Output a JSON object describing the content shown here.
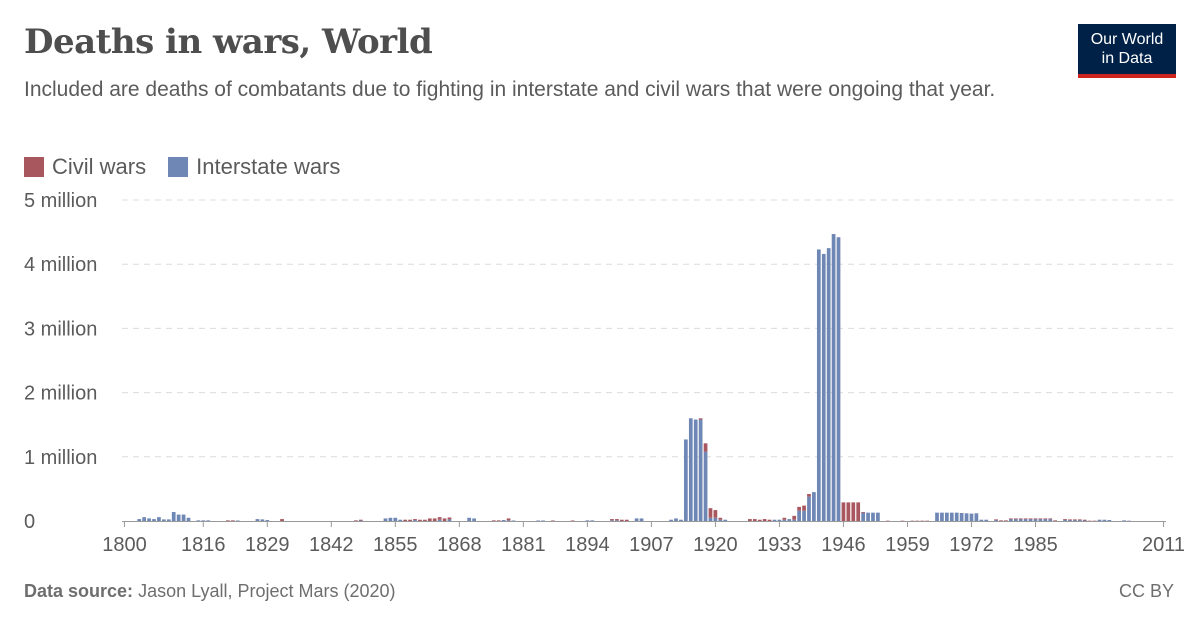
{
  "header": {
    "title": "Deaths in wars, World",
    "subtitle": "Included are deaths of combatants due to fighting in interstate and civil wars that were ongoing that year.",
    "logo_line1": "Our World",
    "logo_line2": "in Data"
  },
  "footer": {
    "source_label": "Data source:",
    "source_text": "Jason Lyall, Project Mars (2020)",
    "license": "CC BY"
  },
  "colors": {
    "civil": "#a8575e",
    "interstate": "#6f87b5"
  },
  "chart_data": {
    "type": "bar",
    "stacked": true,
    "title": "Deaths in wars, World",
    "legend": [
      "Civil wars",
      "Interstate wars"
    ],
    "legend_position": "top-left",
    "grid": true,
    "y_ticks": [
      {
        "value": 0,
        "label": "0"
      },
      {
        "value": 1000000,
        "label": "1 million"
      },
      {
        "value": 2000000,
        "label": "2 million"
      },
      {
        "value": 3000000,
        "label": "3 million"
      },
      {
        "value": 4000000,
        "label": "4 million"
      },
      {
        "value": 5000000,
        "label": "5 million"
      }
    ],
    "ylim": [
      0,
      5000000
    ],
    "xlim": [
      1800,
      2011
    ],
    "x_ticks": [
      1800,
      1816,
      1829,
      1842,
      1855,
      1868,
      1881,
      1894,
      1907,
      1920,
      1933,
      1946,
      1959,
      1972,
      1985,
      2011
    ],
    "series": [
      {
        "name": "Interstate wars",
        "points": [
          [
            1803,
            30000
          ],
          [
            1804,
            60000
          ],
          [
            1805,
            40000
          ],
          [
            1806,
            30000
          ],
          [
            1807,
            60000
          ],
          [
            1808,
            25000
          ],
          [
            1809,
            25000
          ],
          [
            1810,
            140000
          ],
          [
            1811,
            100000
          ],
          [
            1812,
            100000
          ],
          [
            1813,
            50000
          ],
          [
            1815,
            10000
          ],
          [
            1816,
            10000
          ],
          [
            1817,
            10000
          ],
          [
            1823,
            8000
          ],
          [
            1827,
            30000
          ],
          [
            1828,
            25000
          ],
          [
            1829,
            15000
          ],
          [
            1848,
            10000
          ],
          [
            1853,
            40000
          ],
          [
            1854,
            50000
          ],
          [
            1855,
            50000
          ],
          [
            1856,
            20000
          ],
          [
            1859,
            15000
          ],
          [
            1864,
            20000
          ],
          [
            1866,
            25000
          ],
          [
            1870,
            50000
          ],
          [
            1871,
            40000
          ],
          [
            1877,
            15000
          ],
          [
            1878,
            10000
          ],
          [
            1879,
            8000
          ],
          [
            1884,
            8000
          ],
          [
            1885,
            8000
          ],
          [
            1894,
            10000
          ],
          [
            1895,
            10000
          ],
          [
            1899,
            10000
          ],
          [
            1900,
            10000
          ],
          [
            1904,
            40000
          ],
          [
            1905,
            40000
          ],
          [
            1911,
            20000
          ],
          [
            1912,
            40000
          ],
          [
            1913,
            20000
          ],
          [
            1914,
            1270000
          ],
          [
            1915,
            1600000
          ],
          [
            1916,
            1580000
          ],
          [
            1917,
            1580000
          ],
          [
            1918,
            1080000
          ],
          [
            1919,
            50000
          ],
          [
            1920,
            50000
          ],
          [
            1921,
            20000
          ],
          [
            1922,
            20000
          ],
          [
            1932,
            20000
          ],
          [
            1933,
            20000
          ],
          [
            1934,
            20000
          ],
          [
            1935,
            30000
          ],
          [
            1936,
            20000
          ],
          [
            1937,
            160000
          ],
          [
            1938,
            160000
          ],
          [
            1939,
            380000
          ],
          [
            1940,
            450000
          ],
          [
            1941,
            4230000
          ],
          [
            1942,
            4160000
          ],
          [
            1943,
            4250000
          ],
          [
            1944,
            4470000
          ],
          [
            1945,
            4420000
          ],
          [
            1950,
            130000
          ],
          [
            1951,
            130000
          ],
          [
            1952,
            130000
          ],
          [
            1953,
            130000
          ],
          [
            1965,
            130000
          ],
          [
            1966,
            130000
          ],
          [
            1967,
            130000
          ],
          [
            1968,
            130000
          ],
          [
            1969,
            130000
          ],
          [
            1970,
            125000
          ],
          [
            1971,
            120000
          ],
          [
            1972,
            115000
          ],
          [
            1973,
            120000
          ],
          [
            1974,
            20000
          ],
          [
            1975,
            20000
          ],
          [
            1977,
            15000
          ],
          [
            1980,
            30000
          ],
          [
            1981,
            30000
          ],
          [
            1982,
            30000
          ],
          [
            1983,
            30000
          ],
          [
            1984,
            30000
          ],
          [
            1985,
            30000
          ],
          [
            1986,
            30000
          ],
          [
            1987,
            30000
          ],
          [
            1988,
            30000
          ],
          [
            1991,
            20000
          ],
          [
            1992,
            15000
          ],
          [
            1993,
            15000
          ],
          [
            1994,
            15000
          ],
          [
            1995,
            15000
          ],
          [
            1998,
            20000
          ],
          [
            1999,
            20000
          ],
          [
            2000,
            15000
          ],
          [
            2003,
            10000
          ],
          [
            2004,
            5000
          ]
        ]
      },
      {
        "name": "Civil wars",
        "points": [
          [
            1821,
            10000
          ],
          [
            1822,
            10000
          ],
          [
            1832,
            30000
          ],
          [
            1847,
            10000
          ],
          [
            1848,
            10000
          ],
          [
            1857,
            20000
          ],
          [
            1858,
            20000
          ],
          [
            1859,
            15000
          ],
          [
            1860,
            20000
          ],
          [
            1861,
            20000
          ],
          [
            1862,
            40000
          ],
          [
            1863,
            40000
          ],
          [
            1864,
            40000
          ],
          [
            1865,
            40000
          ],
          [
            1866,
            30000
          ],
          [
            1875,
            10000
          ],
          [
            1876,
            10000
          ],
          [
            1878,
            30000
          ],
          [
            1887,
            8000
          ],
          [
            1891,
            8000
          ],
          [
            1899,
            20000
          ],
          [
            1900,
            20000
          ],
          [
            1901,
            20000
          ],
          [
            1902,
            20000
          ],
          [
            1917,
            20000
          ],
          [
            1918,
            130000
          ],
          [
            1919,
            150000
          ],
          [
            1920,
            120000
          ],
          [
            1921,
            30000
          ],
          [
            1927,
            30000
          ],
          [
            1928,
            30000
          ],
          [
            1929,
            20000
          ],
          [
            1930,
            30000
          ],
          [
            1931,
            20000
          ],
          [
            1934,
            30000
          ],
          [
            1936,
            60000
          ],
          [
            1937,
            60000
          ],
          [
            1938,
            80000
          ],
          [
            1939,
            40000
          ],
          [
            1946,
            290000
          ],
          [
            1947,
            290000
          ],
          [
            1948,
            290000
          ],
          [
            1949,
            290000
          ],
          [
            1950,
            10000
          ],
          [
            1955,
            5000
          ],
          [
            1958,
            5000
          ],
          [
            1960,
            5000
          ],
          [
            1961,
            5000
          ],
          [
            1962,
            5000
          ],
          [
            1963,
            5000
          ],
          [
            1977,
            10000
          ],
          [
            1978,
            10000
          ],
          [
            1979,
            10000
          ],
          [
            1980,
            10000
          ],
          [
            1981,
            10000
          ],
          [
            1982,
            10000
          ],
          [
            1983,
            10000
          ],
          [
            1984,
            10000
          ],
          [
            1985,
            10000
          ],
          [
            1986,
            10000
          ],
          [
            1987,
            10000
          ],
          [
            1988,
            10000
          ],
          [
            1989,
            10000
          ],
          [
            1991,
            10000
          ],
          [
            1992,
            10000
          ],
          [
            1993,
            10000
          ],
          [
            1994,
            10000
          ],
          [
            1995,
            5000
          ],
          [
            1996,
            5000
          ],
          [
            1997,
            5000
          ]
        ]
      }
    ]
  }
}
